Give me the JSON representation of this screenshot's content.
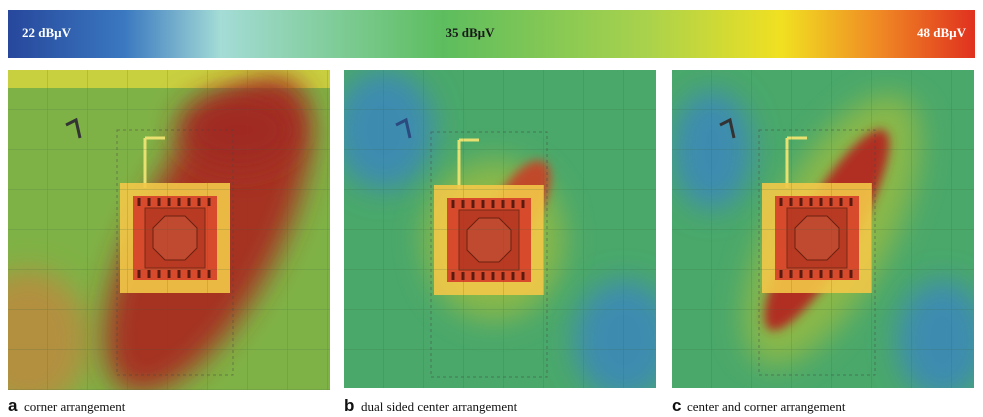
{
  "colorbar": {
    "labels": [
      "22 dBµV",
      "35 dBµV",
      "48 dBµV"
    ]
  },
  "panels": [
    {
      "letter": "a",
      "caption": "corner arrangement"
    },
    {
      "letter": "b",
      "caption": "dual sided center arrangement"
    },
    {
      "letter": "c",
      "caption": "center and corner arrangement"
    }
  ]
}
